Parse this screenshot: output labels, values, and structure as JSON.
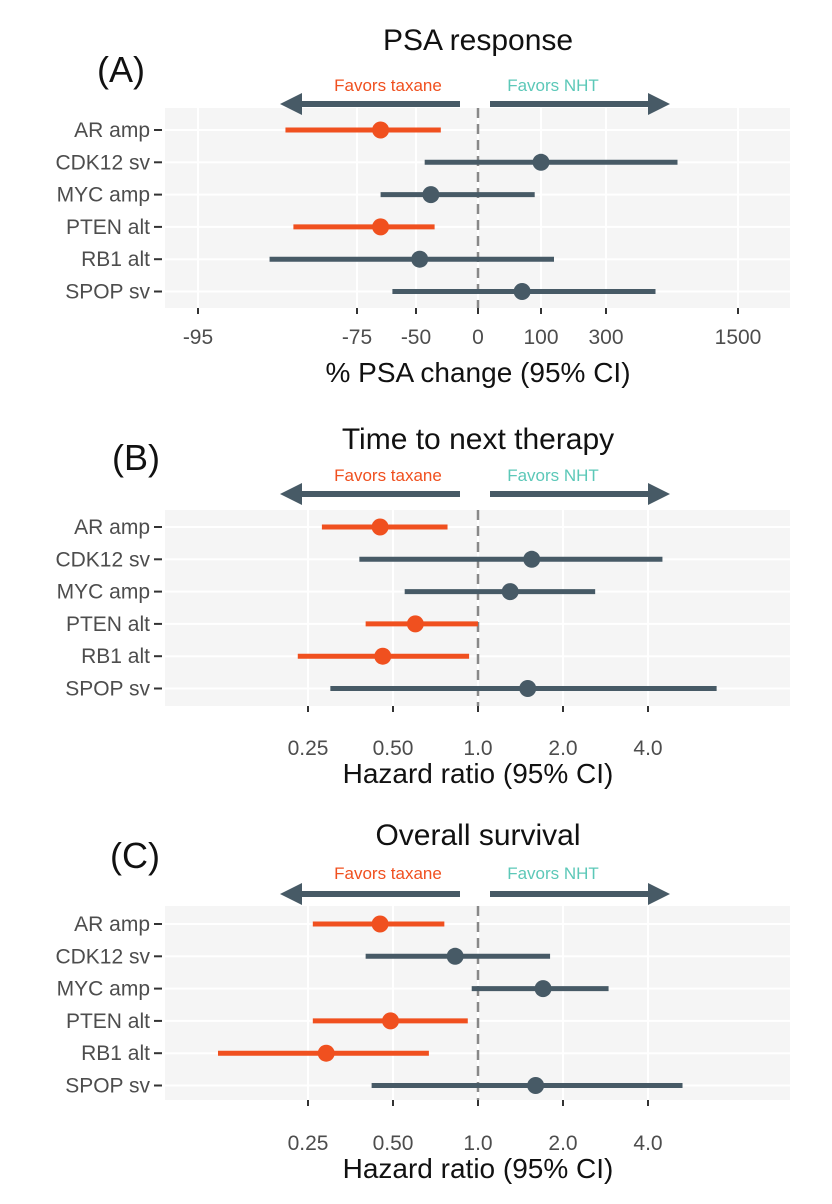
{
  "colors": {
    "taxane": "#f0501f",
    "nht": "#475a66",
    "nht_text": "#5cc8b8",
    "panel_bg": "#f5f5f5",
    "grid": "#ffffff",
    "refline": "#888888"
  },
  "chart_data": [
    {
      "type": "forest",
      "panel_letter": "(A)",
      "title": "PSA  response",
      "xlabel": "% PSA change (95% CI)",
      "favors_left": "Favors  taxane",
      "favors_right": "Favors NHT",
      "ticks": [
        "-95",
        "-75",
        "-50",
        "0",
        "100",
        "300",
        "1500"
      ],
      "reference": "0",
      "rows": [
        {
          "label": "AR amp",
          "estimate": -65,
          "lower": -84,
          "upper": -30,
          "favors": "taxane"
        },
        {
          "label": "CDK12 sv",
          "estimate": 100,
          "lower": -43,
          "upper": 950,
          "favors": "nht"
        },
        {
          "label": "MYC amp",
          "estimate": -38,
          "lower": -65,
          "upper": 90,
          "favors": "nht"
        },
        {
          "label": "PTEN alt",
          "estimate": -65,
          "lower": -83,
          "upper": -35,
          "favors": "taxane"
        },
        {
          "label": "RB1 alt",
          "estimate": -47,
          "lower": -86,
          "upper": 140,
          "favors": "nht"
        },
        {
          "label": "SPOP sv",
          "estimate": 70,
          "lower": -60,
          "upper": 750,
          "favors": "nht"
        }
      ]
    },
    {
      "type": "forest",
      "panel_letter": "(B)",
      "title": "Time to  next  therapy",
      "xlabel": "Hazard  ratio (95% CI)",
      "favors_left": "Favors  taxane",
      "favors_right": "Favors NHT",
      "ticks": [
        "0.25",
        "0.50",
        "1.0",
        "2.0",
        "4.0"
      ],
      "reference": "1.0",
      "rows": [
        {
          "label": "AR amp",
          "estimate": 0.45,
          "lower": 0.28,
          "upper": 0.78,
          "favors": "taxane"
        },
        {
          "label": "CDK12 sv",
          "estimate": 1.55,
          "lower": 0.38,
          "upper": 4.5,
          "favors": "nht"
        },
        {
          "label": "MYC amp",
          "estimate": 1.3,
          "lower": 0.55,
          "upper": 2.6,
          "favors": "nht"
        },
        {
          "label": "PTEN alt",
          "estimate": 0.6,
          "lower": 0.4,
          "upper": 1.0,
          "favors": "taxane"
        },
        {
          "label": "RB1 alt",
          "estimate": 0.46,
          "lower": 0.23,
          "upper": 0.93,
          "favors": "taxane"
        },
        {
          "label": "SPOP sv",
          "estimate": 1.5,
          "lower": 0.3,
          "upper": 7.0,
          "favors": "nht"
        }
      ]
    },
    {
      "type": "forest",
      "panel_letter": "(C)",
      "title": "Overall  survival",
      "xlabel": "Hazard  ratio (95% CI)",
      "favors_left": "Favors  taxane",
      "favors_right": "Favors NHT",
      "ticks": [
        "0.25",
        "0.50",
        "1.0",
        "2.0",
        "4.0"
      ],
      "reference": "1.0",
      "rows": [
        {
          "label": "AR amp",
          "estimate": 0.45,
          "lower": 0.26,
          "upper": 0.76,
          "favors": "taxane"
        },
        {
          "label": "CDK12 sv",
          "estimate": 0.83,
          "lower": 0.4,
          "upper": 1.8,
          "favors": "nht"
        },
        {
          "label": "MYC amp",
          "estimate": 1.7,
          "lower": 0.95,
          "upper": 2.9,
          "favors": "nht"
        },
        {
          "label": "PTEN alt",
          "estimate": 0.49,
          "lower": 0.26,
          "upper": 0.92,
          "favors": "taxane"
        },
        {
          "label": "RB1 alt",
          "estimate": 0.29,
          "lower": 0.12,
          "upper": 0.67,
          "favors": "taxane"
        },
        {
          "label": "SPOP sv",
          "estimate": 1.6,
          "lower": 0.42,
          "upper": 5.3,
          "favors": "nht"
        }
      ]
    }
  ]
}
